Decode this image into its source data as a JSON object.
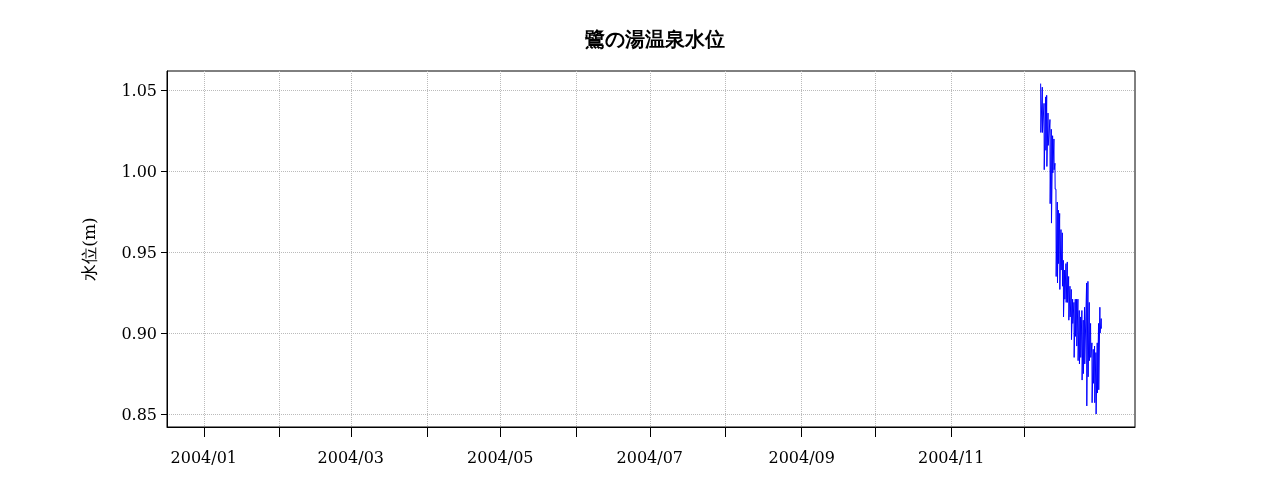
{
  "chart_data": {
    "type": "line",
    "title": "鷺の湯温泉水位",
    "ylabel": "水位(m)",
    "xlim": [
      "2003-12-17",
      "2005-01-15"
    ],
    "xticks": [
      {
        "value": "2004-01",
        "label": "2004/01"
      },
      {
        "value": "2004-02",
        "label": null
      },
      {
        "value": "2004-03",
        "label": "2004/03"
      },
      {
        "value": "2004-04",
        "label": null
      },
      {
        "value": "2004-05",
        "label": "2004/05"
      },
      {
        "value": "2004-06",
        "label": null
      },
      {
        "value": "2004-07",
        "label": "2004/07"
      },
      {
        "value": "2004-08",
        "label": null
      },
      {
        "value": "2004-09",
        "label": "2004/09"
      },
      {
        "value": "2004-10",
        "label": null
      },
      {
        "value": "2004-11",
        "label": "2004/11"
      },
      {
        "value": "2004-12",
        "label": null
      }
    ],
    "ylim": [
      0.842,
      1.062
    ],
    "yticks": [
      {
        "value": 0.85,
        "label": "0.85"
      },
      {
        "value": 0.9,
        "label": "0.90"
      },
      {
        "value": 0.95,
        "label": "0.95"
      },
      {
        "value": 1.0,
        "label": "1.00"
      },
      {
        "value": 1.05,
        "label": "1.05"
      }
    ],
    "grid": true,
    "marker": "none",
    "line_style": "solid",
    "series": [
      {
        "color": "#0000ff",
        "x": [
          "2004-12-07T12:00",
          "2004-12-07T14:00",
          "2004-12-08T04:00",
          "2004-12-08T06:00",
          "2004-12-08T21:00",
          "2004-12-08T23:00",
          "2004-12-09T13:00",
          "2004-12-09T15:00",
          "2004-12-09T23:00",
          "2004-12-10T01:00",
          "2004-12-10T12:00",
          "2004-12-10T14:00",
          "2004-12-11T07:00",
          "2004-12-11T09:00",
          "2004-12-11T20:00",
          "2004-12-11T22:00",
          "2004-12-12T09:00",
          "2004-12-12T11:00",
          "2004-12-12T22:00",
          "2004-12-13T00:00",
          "2004-12-13T08:00",
          "2004-12-13T10:00",
          "2004-12-13T18:00",
          "2004-12-13T20:00",
          "2004-12-14T07:00",
          "2004-12-14T09:00",
          "2004-12-14T17:00",
          "2004-12-14T19:00",
          "2004-12-15T06:00",
          "2004-12-15T08:00",
          "2004-12-15T19:00",
          "2004-12-15T21:00",
          "2004-12-16T08:00",
          "2004-12-16T10:00",
          "2004-12-16T18:00",
          "2004-12-16T20:00",
          "2004-12-17T07:00",
          "2004-12-17T09:00",
          "2004-12-17T20:00",
          "2004-12-17T22:00",
          "2004-12-18T09:00",
          "2004-12-18T11:00",
          "2004-12-18T22:00",
          "2004-12-19T00:00",
          "2004-12-19T11:00",
          "2004-12-19T13:00",
          "2004-12-20T00:00",
          "2004-12-20T02:00",
          "2004-12-20T13:00",
          "2004-12-20T15:00",
          "2004-12-21T02:00",
          "2004-12-21T04:00",
          "2004-12-21T15:00",
          "2004-12-21T17:00",
          "2004-12-22T04:00",
          "2004-12-22T06:00",
          "2004-12-22T17:00",
          "2004-12-22T19:00",
          "2004-12-23T06:00",
          "2004-12-23T08:00",
          "2004-12-23T19:00",
          "2004-12-23T21:00",
          "2004-12-24T08:00",
          "2004-12-24T10:00",
          "2004-12-24T21:00",
          "2004-12-24T23:00",
          "2004-12-25T10:00",
          "2004-12-25T12:00",
          "2004-12-26T06:00",
          "2004-12-26T08:00",
          "2004-12-26T19:00",
          "2004-12-26T21:00",
          "2004-12-27T08:00",
          "2004-12-27T10:00",
          "2004-12-27T21:00",
          "2004-12-27T23:00",
          "2004-12-28T10:00",
          "2004-12-28T12:00",
          "2004-12-28T23:00",
          "2004-12-29T01:00",
          "2004-12-29T12:00",
          "2004-12-29T14:00",
          "2004-12-30T01:00",
          "2004-12-30T03:00",
          "2004-12-30T14:00",
          "2004-12-30T16:00",
          "2004-12-31T03:00",
          "2004-12-31T05:00",
          "2004-12-31T16:00",
          "2004-12-31T18:00",
          "2005-01-01T05:00",
          "2005-01-01T07:00"
        ],
        "values": [
          1.054,
          1.024,
          1.052,
          1.024,
          1.042,
          1.001,
          1.046,
          1.013,
          1.047,
          1.003,
          1.036,
          1.016,
          1.032,
          0.98,
          1.026,
          0.968,
          1.022,
          0.999,
          1.02,
          1.001,
          1.005,
          0.989,
          0.989,
          0.935,
          0.981,
          0.931,
          0.976,
          0.943,
          0.974,
          0.927,
          0.964,
          0.939,
          0.962,
          0.929,
          0.945,
          0.91,
          0.939,
          0.921,
          0.943,
          0.919,
          0.944,
          0.919,
          0.935,
          0.908,
          0.929,
          0.91,
          0.927,
          0.896,
          0.921,
          0.906,
          0.919,
          0.885,
          0.921,
          0.898,
          0.921,
          0.892,
          0.921,
          0.883,
          0.914,
          0.881,
          0.91,
          0.885,
          0.914,
          0.871,
          0.908,
          0.875,
          0.916,
          0.881,
          0.931,
          0.855,
          0.932,
          0.873,
          0.919,
          0.883,
          0.906,
          0.885,
          0.894,
          0.857,
          0.89,
          0.869,
          0.892,
          0.857,
          0.888,
          0.85,
          0.894,
          0.863,
          0.906,
          0.865,
          0.916,
          0.9,
          0.909,
          0.903
        ]
      }
    ]
  }
}
